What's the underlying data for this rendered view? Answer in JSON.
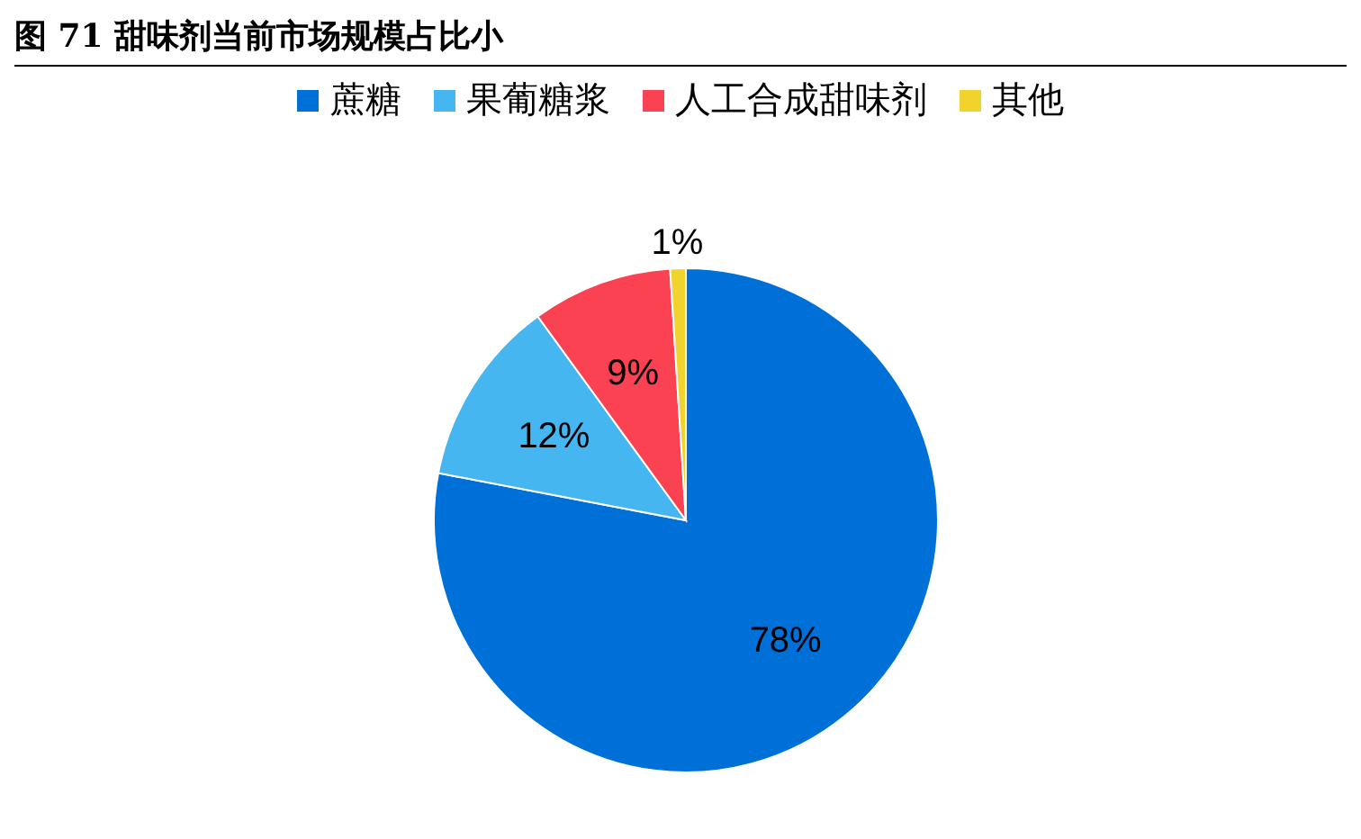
{
  "chart_data": {
    "type": "pie",
    "title": "图 71 甜味剂当前市场规模占比小",
    "categories": [
      "蔗糖",
      "果葡糖浆",
      "人工合成甜味剂",
      "其他"
    ],
    "values": [
      78,
      12,
      9,
      1
    ],
    "colors": [
      "#0070d9",
      "#45b6ef",
      "#fa4252",
      "#f2d22c"
    ],
    "value_labels": [
      "78%",
      "12%",
      "9%",
      "1%"
    ],
    "legend": "top"
  }
}
